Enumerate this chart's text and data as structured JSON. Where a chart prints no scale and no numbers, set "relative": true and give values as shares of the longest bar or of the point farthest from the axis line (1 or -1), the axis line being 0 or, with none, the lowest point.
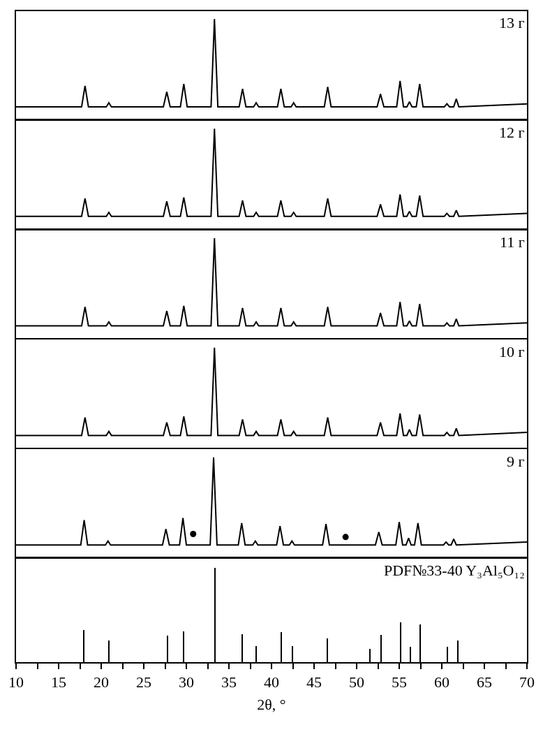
{
  "chart_data": [
    {
      "type": "line",
      "relative": true,
      "xlim": [
        10,
        70
      ],
      "tick_labels": false,
      "x": [
        10,
        17.7,
        18.1,
        18.5,
        20.6,
        20.9,
        21.2,
        27.3,
        27.7,
        28.1,
        29.3,
        29.7,
        30.1,
        32.9,
        33.3,
        33.7,
        36.2,
        36.6,
        37.0,
        37.9,
        38.2,
        38.5,
        40.7,
        41.1,
        41.5,
        42.3,
        42.6,
        42.9,
        46.2,
        46.6,
        47.0,
        52.4,
        52.8,
        53.2,
        54.7,
        55.1,
        55.5,
        55.9,
        56.2,
        56.5,
        57.0,
        57.4,
        57.8,
        60.3,
        60.6,
        60.9,
        61.4,
        61.7,
        62.0,
        70
      ],
      "series": [
        {
          "name": "13 г",
          "color": "#000000",
          "values": [
            0.12,
            0.12,
            0.33,
            0.12,
            0.12,
            0.16,
            0.12,
            0.12,
            0.27,
            0.12,
            0.12,
            0.35,
            0.12,
            0.12,
            1,
            0.12,
            0.12,
            0.3,
            0.12,
            0.12,
            0.16,
            0.12,
            0.12,
            0.3,
            0.12,
            0.12,
            0.16,
            0.12,
            0.12,
            0.32,
            0.12,
            0.12,
            0.25,
            0.12,
            0.12,
            0.38,
            0.12,
            0.12,
            0.17,
            0.12,
            0.12,
            0.35,
            0.12,
            0.12,
            0.15,
            0.12,
            0.12,
            0.2,
            0.12,
            0.15
          ]
        }
      ]
    },
    {
      "type": "line",
      "relative": true,
      "xlim": [
        10,
        70
      ],
      "tick_labels": false,
      "x": [
        10,
        17.7,
        18.1,
        18.5,
        20.6,
        20.9,
        21.2,
        27.3,
        27.7,
        28.1,
        29.3,
        29.7,
        30.1,
        32.9,
        33.3,
        33.7,
        36.2,
        36.6,
        37.0,
        37.9,
        38.2,
        38.5,
        40.7,
        41.1,
        41.5,
        42.3,
        42.6,
        42.9,
        46.2,
        46.6,
        47.0,
        52.4,
        52.8,
        53.2,
        54.7,
        55.1,
        55.5,
        55.9,
        56.2,
        56.5,
        57.0,
        57.4,
        57.8,
        60.3,
        60.6,
        60.9,
        61.4,
        61.7,
        62.0,
        70
      ],
      "series": [
        {
          "name": "12 г",
          "color": "#000000",
          "values": [
            0.12,
            0.12,
            0.3,
            0.12,
            0.12,
            0.16,
            0.12,
            0.12,
            0.27,
            0.12,
            0.12,
            0.31,
            0.12,
            0.12,
            1,
            0.12,
            0.12,
            0.28,
            0.12,
            0.12,
            0.16,
            0.12,
            0.12,
            0.28,
            0.12,
            0.12,
            0.16,
            0.12,
            0.12,
            0.3,
            0.12,
            0.12,
            0.24,
            0.12,
            0.12,
            0.34,
            0.12,
            0.12,
            0.17,
            0.12,
            0.12,
            0.33,
            0.12,
            0.12,
            0.15,
            0.12,
            0.12,
            0.18,
            0.12,
            0.15
          ]
        }
      ]
    },
    {
      "type": "line",
      "relative": true,
      "xlim": [
        10,
        70
      ],
      "tick_labels": false,
      "x": [
        10,
        17.7,
        18.1,
        18.5,
        20.6,
        20.9,
        21.2,
        27.3,
        27.7,
        28.1,
        29.3,
        29.7,
        30.1,
        32.9,
        33.3,
        33.7,
        36.2,
        36.6,
        37.0,
        37.9,
        38.2,
        38.5,
        40.7,
        41.1,
        41.5,
        42.3,
        42.6,
        42.9,
        46.2,
        46.6,
        47.0,
        52.4,
        52.8,
        53.2,
        54.7,
        55.1,
        55.5,
        55.9,
        56.2,
        56.5,
        57.0,
        57.4,
        57.8,
        60.3,
        60.6,
        60.9,
        61.4,
        61.7,
        62.0,
        70
      ],
      "series": [
        {
          "name": "11 г",
          "color": "#000000",
          "values": [
            0.12,
            0.12,
            0.31,
            0.12,
            0.12,
            0.16,
            0.12,
            0.12,
            0.27,
            0.12,
            0.12,
            0.32,
            0.12,
            0.12,
            1,
            0.12,
            0.12,
            0.3,
            0.12,
            0.12,
            0.16,
            0.12,
            0.12,
            0.3,
            0.12,
            0.12,
            0.16,
            0.12,
            0.12,
            0.31,
            0.12,
            0.12,
            0.25,
            0.12,
            0.12,
            0.36,
            0.12,
            0.12,
            0.17,
            0.12,
            0.12,
            0.34,
            0.12,
            0.12,
            0.15,
            0.12,
            0.12,
            0.19,
            0.12,
            0.15
          ]
        }
      ]
    },
    {
      "type": "line",
      "relative": true,
      "xlim": [
        10,
        70
      ],
      "tick_labels": false,
      "x": [
        10,
        17.7,
        18.1,
        18.5,
        20.6,
        20.9,
        21.2,
        27.3,
        27.7,
        28.1,
        29.3,
        29.7,
        30.1,
        32.9,
        33.3,
        33.7,
        36.2,
        36.6,
        37.0,
        37.9,
        38.2,
        38.5,
        40.7,
        41.1,
        41.5,
        42.3,
        42.6,
        42.9,
        46.2,
        46.6,
        47.0,
        52.4,
        52.8,
        53.2,
        54.7,
        55.1,
        55.5,
        55.9,
        56.2,
        56.5,
        57.0,
        57.4,
        57.8,
        60.3,
        60.6,
        60.9,
        61.4,
        61.7,
        62.0,
        70
      ],
      "series": [
        {
          "name": "10 г",
          "color": "#000000",
          "values": [
            0.12,
            0.12,
            0.3,
            0.12,
            0.12,
            0.16,
            0.12,
            0.12,
            0.25,
            0.12,
            0.12,
            0.31,
            0.12,
            0.12,
            1,
            0.12,
            0.12,
            0.28,
            0.12,
            0.12,
            0.16,
            0.12,
            0.12,
            0.28,
            0.12,
            0.12,
            0.16,
            0.12,
            0.12,
            0.3,
            0.12,
            0.12,
            0.25,
            0.12,
            0.12,
            0.34,
            0.12,
            0.12,
            0.18,
            0.12,
            0.12,
            0.33,
            0.12,
            0.12,
            0.15,
            0.12,
            0.12,
            0.19,
            0.12,
            0.15
          ]
        }
      ]
    },
    {
      "type": "line",
      "relative": true,
      "xlim": [
        10,
        70
      ],
      "tick_labels": false,
      "x": [
        10,
        17.6,
        18.0,
        18.4,
        20.5,
        20.8,
        21.1,
        27.2,
        27.6,
        28.0,
        29.2,
        29.6,
        30.0,
        32.8,
        33.2,
        33.6,
        36.1,
        36.5,
        36.9,
        37.8,
        38.1,
        38.4,
        40.6,
        41.0,
        41.4,
        42.1,
        42.4,
        42.7,
        46.0,
        46.4,
        46.8,
        52.2,
        52.6,
        53.0,
        54.6,
        55.0,
        55.4,
        55.8,
        56.1,
        56.4,
        56.8,
        57.2,
        57.6,
        60.2,
        60.5,
        60.8,
        61.1,
        61.4,
        61.7,
        70
      ],
      "series": [
        {
          "name": "9 г",
          "color": "#000000",
          "values": [
            0.12,
            0.12,
            0.37,
            0.12,
            0.12,
            0.16,
            0.12,
            0.12,
            0.28,
            0.12,
            0.12,
            0.39,
            0.12,
            0.12,
            1,
            0.12,
            0.12,
            0.34,
            0.12,
            0.12,
            0.16,
            0.12,
            0.12,
            0.31,
            0.12,
            0.12,
            0.16,
            0.12,
            0.12,
            0.33,
            0.12,
            0.12,
            0.25,
            0.12,
            0.12,
            0.35,
            0.12,
            0.12,
            0.19,
            0.12,
            0.12,
            0.34,
            0.12,
            0.12,
            0.15,
            0.12,
            0.12,
            0.18,
            0.12,
            0.15
          ]
        },
        {
          "type": "scatter",
          "marker": "circle",
          "color": "#000000",
          "x": [
            30.8,
            48.7
          ],
          "values": [
            0.23,
            0.2
          ]
        }
      ]
    },
    {
      "type": "bar",
      "relative": true,
      "xlim": [
        10,
        70
      ],
      "tick_labels": "x",
      "xlabel": "2θ, °",
      "xticks": [
        10,
        {
          "value": 12.5,
          "label": null
        },
        15,
        {
          "value": 17.5,
          "label": null
        },
        20,
        {
          "value": 22.5,
          "label": null
        },
        25,
        {
          "value": 27.5,
          "label": null
        },
        30,
        {
          "value": 32.5,
          "label": null
        },
        35,
        {
          "value": 37.5,
          "label": null
        },
        40,
        {
          "value": 42.5,
          "label": null
        },
        45,
        {
          "value": 47.5,
          "label": null
        },
        50,
        {
          "value": 52.5,
          "label": null
        },
        55,
        {
          "value": 57.5,
          "label": null
        },
        60,
        {
          "value": 62.5,
          "label": null
        },
        65,
        {
          "value": 67.5,
          "label": null
        },
        70
      ],
      "x": [
        18.0,
        20.9,
        27.8,
        29.7,
        33.4,
        36.6,
        38.2,
        41.2,
        42.5,
        46.6,
        51.6,
        52.9,
        55.2,
        56.3,
        57.5,
        60.7,
        61.9
      ],
      "series": [
        {
          "name": "PDF№33-40 Y₃Al₅O₁₂",
          "color": "#000000",
          "values": [
            0.34,
            0.23,
            0.28,
            0.33,
            1,
            0.3,
            0.17,
            0.32,
            0.17,
            0.25,
            0.14,
            0.29,
            0.42,
            0.16,
            0.4,
            0.16,
            0.23
          ]
        }
      ]
    }
  ]
}
